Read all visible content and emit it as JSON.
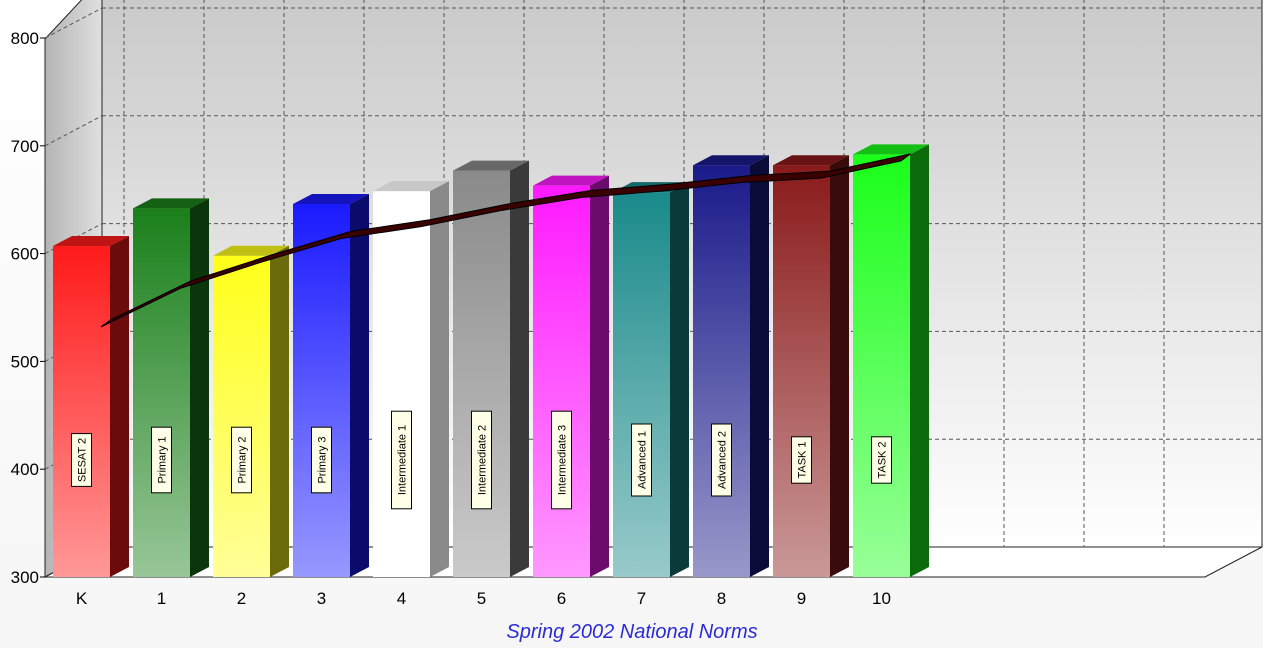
{
  "chart_data": {
    "type": "bar",
    "title": "Spring 2002 National Norms",
    "categories": [
      "K",
      "1",
      "2",
      "3",
      "4",
      "5",
      "6",
      "7",
      "8",
      "9",
      "10"
    ],
    "bar_labels": [
      "SESAT 2",
      "Primary 1",
      "Primary 2",
      "Primary 3",
      "Intermediate 1",
      "Intermediate 2",
      "Intermediate 3",
      "Advanced 1",
      "Advanced 2",
      "TASK 1",
      "TASK 2"
    ],
    "values": [
      607,
      642,
      598,
      646,
      658,
      677,
      663,
      657,
      682,
      682,
      692
    ],
    "line_values": [
      532,
      568,
      592,
      614,
      625,
      640,
      652,
      658,
      666,
      670,
      686
    ],
    "bar_colors": [
      "#ff1a1a",
      "#1a801a",
      "#ffff1a",
      "#1a1aff",
      "#ffffff",
      "#8a8a8a",
      "#ff1aff",
      "#1a8a8a",
      "#1a1a8a",
      "#8a1a1a",
      "#1aff1a"
    ],
    "line_color": "#3a0000",
    "ylim": [
      300,
      800
    ],
    "yticks": [
      300,
      400,
      500,
      600,
      700,
      800
    ],
    "grid": true,
    "legend": "none"
  }
}
